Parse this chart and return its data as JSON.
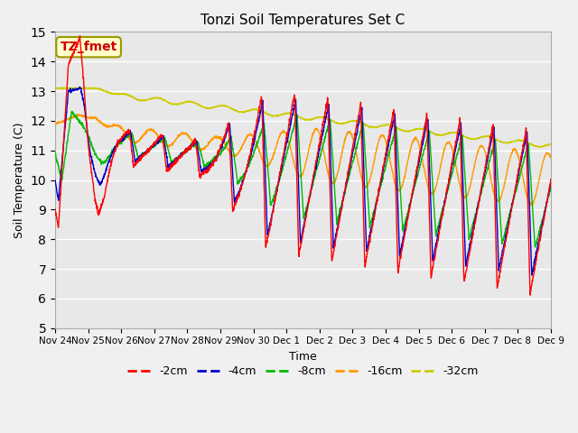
{
  "title": "Tonzi Soil Temperatures Set C",
  "xlabel": "Time",
  "ylabel": "Soil Temperature (C)",
  "ylim": [
    5.0,
    15.0
  ],
  "yticks": [
    5.0,
    6.0,
    7.0,
    8.0,
    9.0,
    10.0,
    11.0,
    12.0,
    13.0,
    14.0,
    15.0
  ],
  "xtick_labels": [
    "Nov 24",
    "Nov 25",
    "Nov 26",
    "Nov 27",
    "Nov 28",
    "Nov 29",
    "Nov 30",
    "Dec 1",
    "Dec 2",
    "Dec 3",
    "Dec 4",
    "Dec 5",
    "Dec 6",
    "Dec 7",
    "Dec 8",
    "Dec 9"
  ],
  "colors": {
    "-2cm": "#ff0000",
    "-4cm": "#0000cc",
    "-8cm": "#00bb00",
    "-16cm": "#ff9900",
    "-32cm": "#cccc00"
  },
  "background_color": "#e0e0e0",
  "plot_bg": "#e8e8e8",
  "annotation_text": "TZ_fmet",
  "annotation_bg": "#ffffcc",
  "annotation_border": "#999900",
  "fig_bg": "#f0f0f0"
}
